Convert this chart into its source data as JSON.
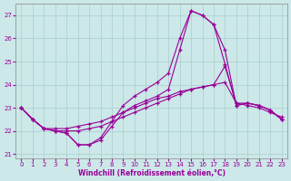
{
  "xlabel": "Windchill (Refroidissement éolien,°C)",
  "hours": [
    0,
    1,
    2,
    3,
    4,
    5,
    6,
    7,
    8,
    9,
    10,
    11,
    12,
    13,
    14,
    15,
    16,
    17,
    18,
    19,
    20,
    21,
    22,
    23
  ],
  "line1": [
    23.0,
    22.5,
    22.1,
    22.0,
    22.0,
    22.0,
    22.1,
    22.2,
    22.4,
    22.6,
    22.8,
    23.0,
    23.2,
    23.4,
    23.6,
    23.8,
    23.9,
    24.0,
    24.1,
    23.2,
    23.1,
    23.0,
    22.8,
    22.6
  ],
  "line2": [
    23.0,
    22.5,
    22.1,
    22.1,
    22.1,
    22.2,
    22.3,
    22.4,
    22.6,
    22.8,
    23.0,
    23.2,
    23.4,
    23.5,
    23.7,
    23.8,
    23.9,
    24.0,
    24.8,
    23.2,
    23.2,
    23.1,
    22.9,
    22.5
  ],
  "line3": [
    23.0,
    22.5,
    22.1,
    22.0,
    21.9,
    21.4,
    21.4,
    21.6,
    22.2,
    22.8,
    23.1,
    23.3,
    23.5,
    23.8,
    25.5,
    27.2,
    27.0,
    26.6,
    24.9,
    23.1,
    23.2,
    23.1,
    22.9,
    22.5
  ],
  "line4": [
    23.0,
    22.5,
    22.1,
    22.0,
    21.9,
    21.4,
    21.4,
    21.7,
    22.4,
    23.1,
    23.5,
    23.8,
    24.1,
    24.5,
    26.0,
    27.2,
    27.0,
    26.6,
    25.5,
    23.1,
    23.2,
    23.1,
    22.9,
    22.5
  ],
  "line_color": "#990099",
  "bg_color": "#cce8e8",
  "grid_color": "#aacece",
  "ylim": [
    20.8,
    27.5
  ],
  "yticks": [
    21,
    22,
    23,
    24,
    25,
    26,
    27
  ],
  "xlim": [
    -0.5,
    23.5
  ]
}
